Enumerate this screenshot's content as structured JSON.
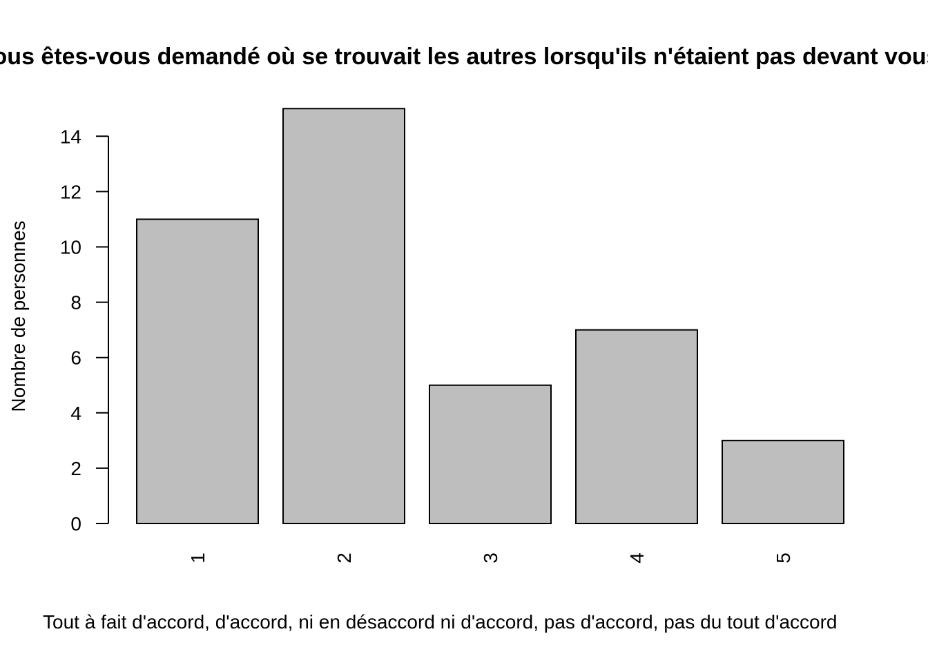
{
  "chart_data": {
    "type": "bar",
    "title": "Vous êtes-vous demandé où se trouvait les autres lorsqu'ils n'étaient pas devant vous ?",
    "xlabel": "Tout à fait d'accord, d'accord, ni en désaccord ni d'accord, pas d'accord, pas du tout d'accord",
    "ylabel": "Nombre de personnes",
    "categories": [
      "1",
      "2",
      "3",
      "4",
      "5"
    ],
    "values": [
      11,
      15,
      5,
      7,
      3
    ],
    "yticks": [
      0,
      2,
      4,
      6,
      8,
      10,
      12,
      14
    ],
    "ylim": [
      0,
      15
    ],
    "bar_color": "#bebebe",
    "grid": false,
    "legend": "none"
  }
}
